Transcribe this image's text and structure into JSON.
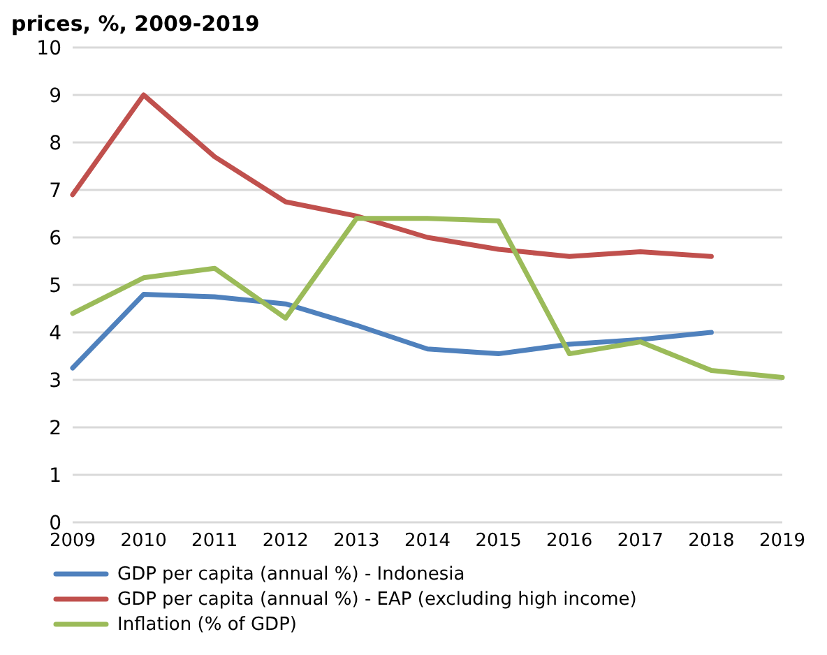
{
  "chart_data": {
    "type": "line",
    "title": "prices, %, 2009-2019",
    "categories": [
      "2009",
      "2010",
      "2011",
      "2012",
      "2013",
      "2014",
      "2015",
      "2016",
      "2017",
      "2018",
      "2019"
    ],
    "series": [
      {
        "name": "GDP per capita (annual %) - Indonesia",
        "color": "#4f81bd",
        "values": [
          3.25,
          4.8,
          4.75,
          4.6,
          4.15,
          3.65,
          3.55,
          3.75,
          3.85,
          4.0,
          null
        ]
      },
      {
        "name": "GDP per capita (annual %) - EAP (excluding high income)",
        "color": "#c0504d",
        "values": [
          6.9,
          9.0,
          7.7,
          6.75,
          6.45,
          6.0,
          5.75,
          5.6,
          5.7,
          5.6,
          null
        ]
      },
      {
        "name": "Inflation (% of GDP)",
        "color": "#9bbb59",
        "values": [
          4.4,
          5.15,
          5.35,
          4.3,
          6.4,
          6.4,
          6.35,
          3.55,
          3.8,
          3.2,
          3.05
        ]
      }
    ],
    "ylim": [
      0,
      10
    ],
    "yticks": [
      0,
      1,
      2,
      3,
      4,
      5,
      6,
      7,
      8,
      9,
      10
    ],
    "grid": "y",
    "legend": "bottom",
    "marker": "none",
    "line_style": "solid"
  }
}
